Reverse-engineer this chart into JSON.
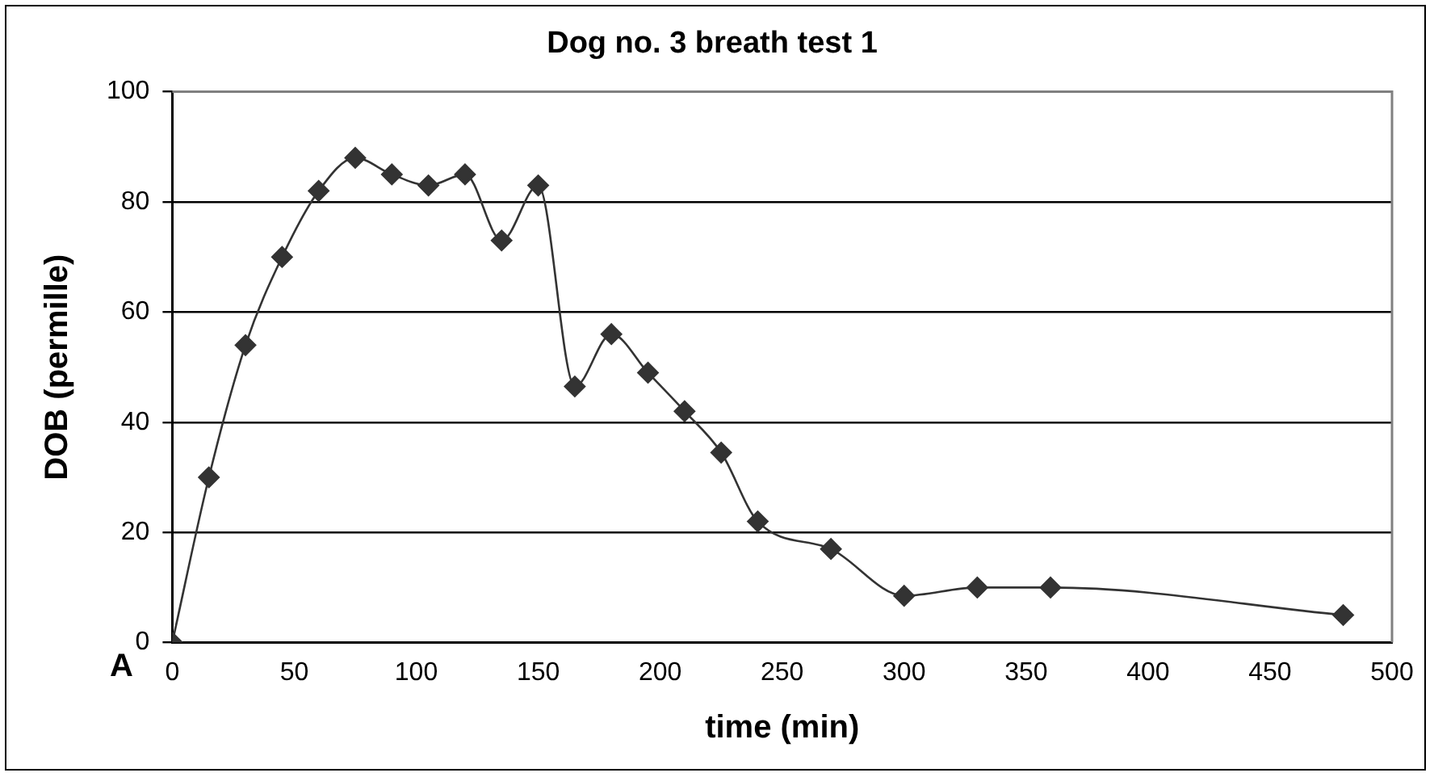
{
  "chart_data": {
    "type": "line",
    "title": "Dog no. 3 breath test 1",
    "xlabel": "time (min)",
    "ylabel": "DOB (permille)",
    "annotations": [
      "A"
    ],
    "x": [
      0,
      15,
      30,
      45,
      60,
      75,
      90,
      105,
      120,
      135,
      150,
      165,
      180,
      195,
      210,
      225,
      240,
      270,
      300,
      330,
      360,
      480
    ],
    "series": [
      {
        "color": "#333333",
        "values": [
          0,
          30,
          54,
          70,
          82,
          88,
          85,
          83,
          85,
          73,
          83,
          46.5,
          56,
          49,
          42,
          34.5,
          22,
          17,
          8.5,
          10,
          10,
          5
        ]
      }
    ],
    "xlim": [
      0,
      500
    ],
    "xticks": [
      0,
      50,
      100,
      150,
      200,
      250,
      300,
      350,
      400,
      450,
      500
    ],
    "ylim": [
      0,
      100
    ],
    "yticks": [
      0,
      20,
      40,
      60,
      80,
      100
    ],
    "grid": "y",
    "legend": false,
    "marker": "diamond",
    "line_style": "solid"
  }
}
